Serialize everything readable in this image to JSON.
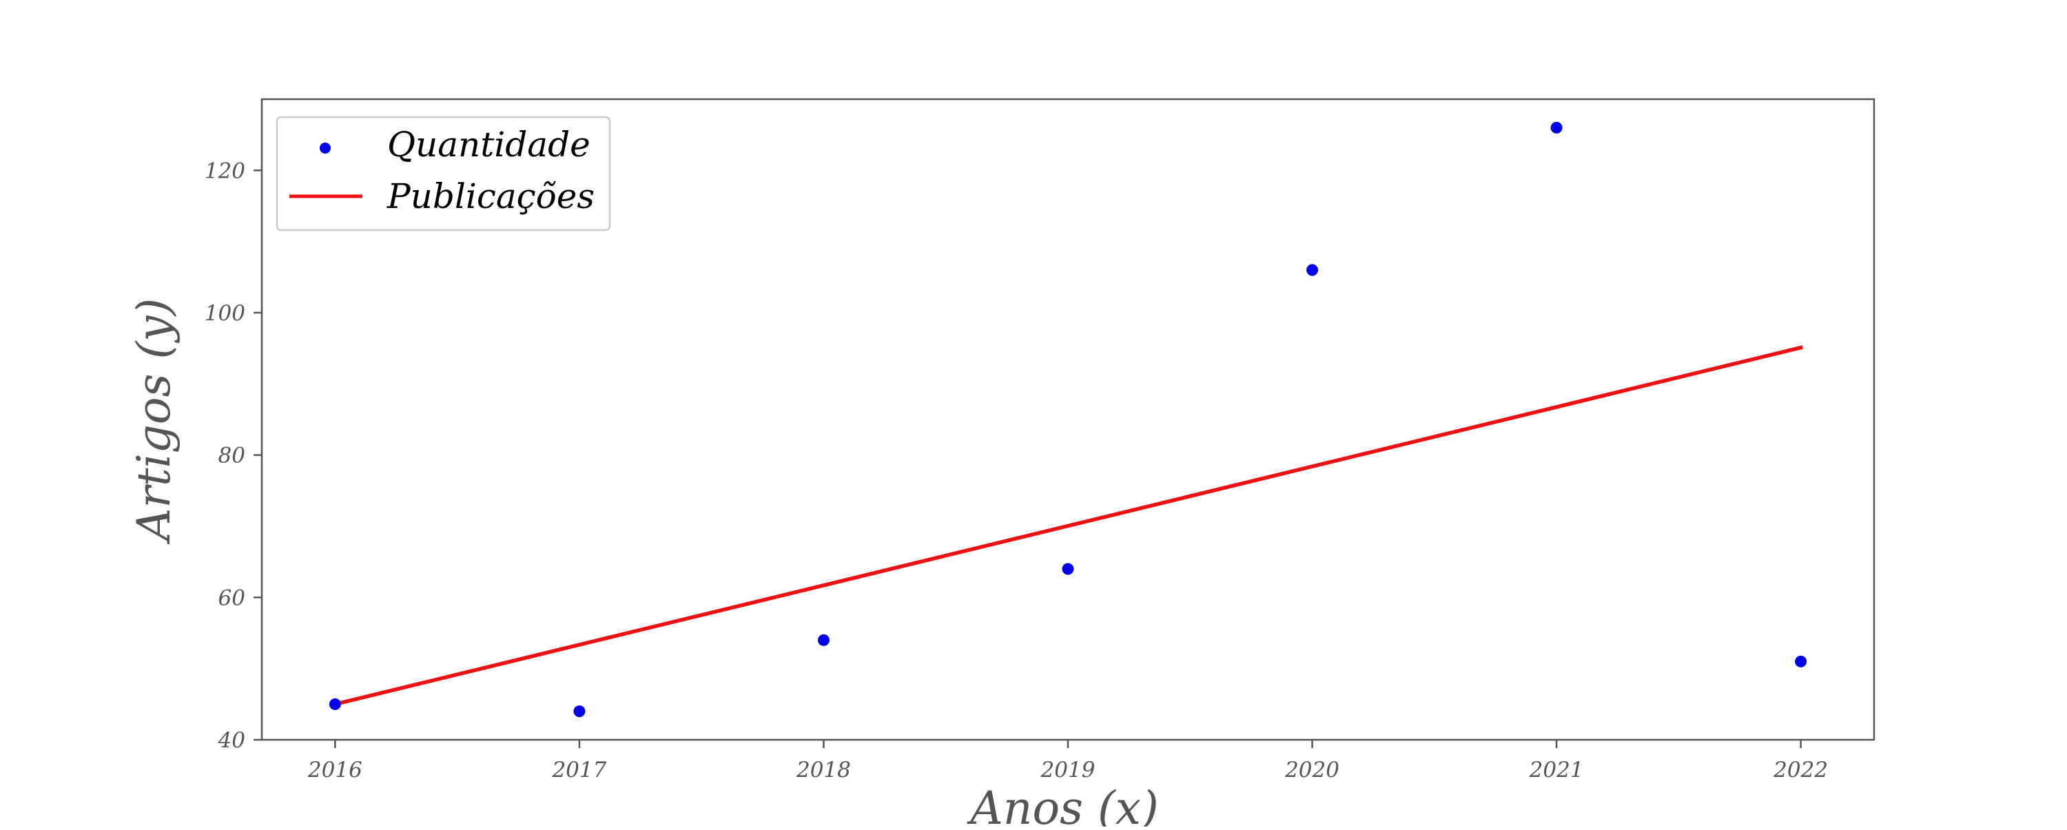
{
  "chart_data": {
    "type": "scatter",
    "title": "",
    "xlabel": "Anos (x)",
    "ylabel": "Artigos (y)",
    "xlim": [
      2015.7,
      2022.3
    ],
    "ylim": [
      40,
      130
    ],
    "xticks": [
      2016,
      2017,
      2018,
      2019,
      2020,
      2021,
      2022
    ],
    "yticks": [
      40,
      60,
      80,
      100,
      120
    ],
    "grid": false,
    "legend": {
      "position": "top-left",
      "entries": [
        "Quantidade",
        "Publicações"
      ]
    },
    "series": [
      {
        "name": "Quantidade",
        "kind": "scatter",
        "color": "#0000ee",
        "x": [
          2016,
          2017,
          2018,
          2019,
          2020,
          2021,
          2022
        ],
        "y": [
          45,
          44,
          54,
          64,
          106,
          126,
          51
        ]
      },
      {
        "name": "Publicações",
        "kind": "line",
        "color": "#ee1111",
        "x": [
          2016,
          2022
        ],
        "y": [
          45,
          95.1
        ]
      }
    ]
  }
}
